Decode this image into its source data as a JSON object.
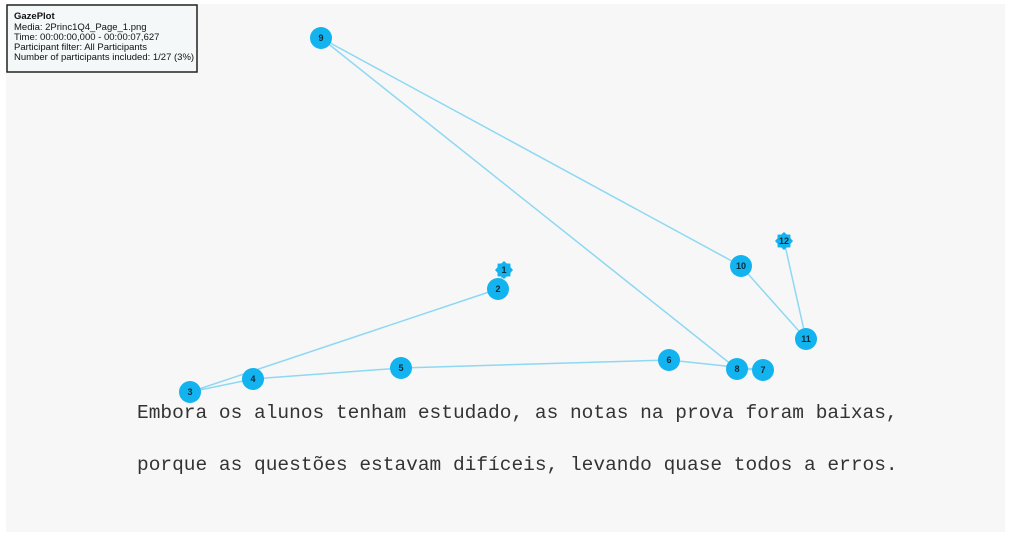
{
  "info_box": {
    "title": "GazePlot",
    "lines": [
      "Media: 2Princ1Q4_Page_1.png",
      "Time: 00:00:00,000 - 00:00:07,627",
      "Participant filter: All Participants",
      "Number of participants included: 1/27 (3%)"
    ]
  },
  "stimulus": {
    "lines": [
      "Embora os alunos tenham estudado, as notas na prova foram baixas,",
      "porque as questões estavam difíceis, levando quase todos a erros."
    ]
  },
  "fixations": [
    {
      "label": "1"
    },
    {
      "label": "2"
    },
    {
      "label": "3"
    },
    {
      "label": "4"
    },
    {
      "label": "5"
    },
    {
      "label": "6"
    },
    {
      "label": "7"
    },
    {
      "label": "8"
    },
    {
      "label": "9"
    },
    {
      "label": "10"
    },
    {
      "label": "11"
    },
    {
      "label": "12"
    }
  ]
}
